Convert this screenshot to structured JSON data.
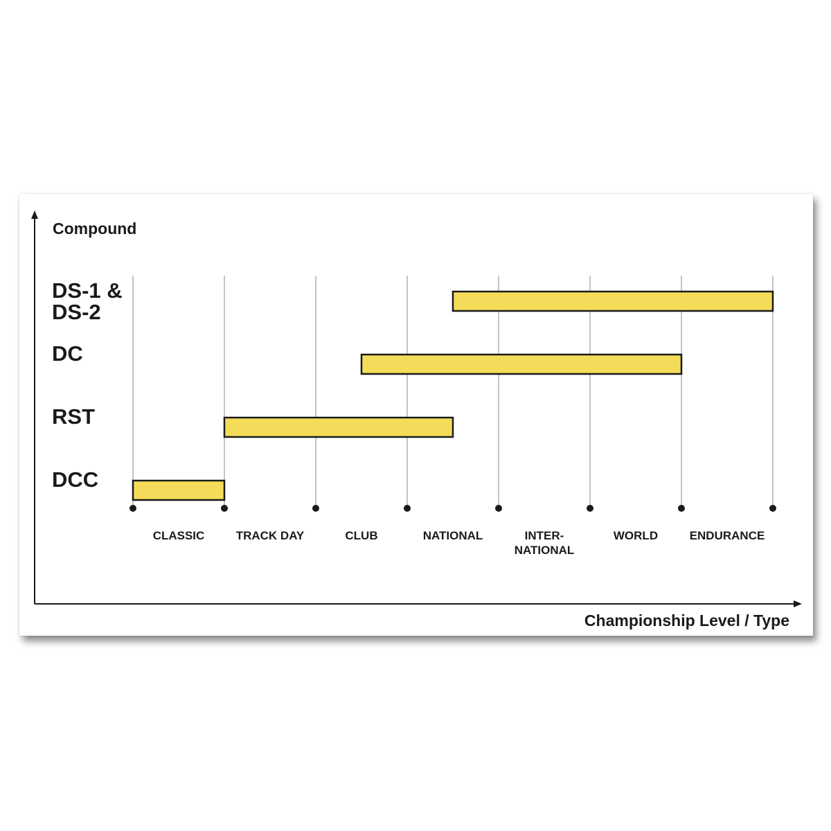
{
  "chart_data": {
    "type": "bar",
    "orientation": "horizontal-range",
    "ylabel": "Compound",
    "xlabel": "Championship Level / Type",
    "x_ticks": [
      "CLASSIC",
      "TRACK DAY",
      "CLUB",
      "NATIONAL",
      "INTER-\nNATIONAL",
      "WORLD",
      "ENDURANCE"
    ],
    "xlim": [
      0,
      7
    ],
    "grid": true,
    "colors": {
      "bar_fill": "#f4dc5a",
      "bar_stroke": "#1a1a1a",
      "axis": "#1a1a1a",
      "grid": "#8a8a8a"
    },
    "series": [
      {
        "category": "DS-1 &\nDS-2",
        "start": 3.5,
        "end": 7
      },
      {
        "category": "DC",
        "start": 2.5,
        "end": 6
      },
      {
        "category": "RST",
        "start": 1,
        "end": 3.5
      },
      {
        "category": "DCC",
        "start": 0,
        "end": 1
      }
    ]
  }
}
